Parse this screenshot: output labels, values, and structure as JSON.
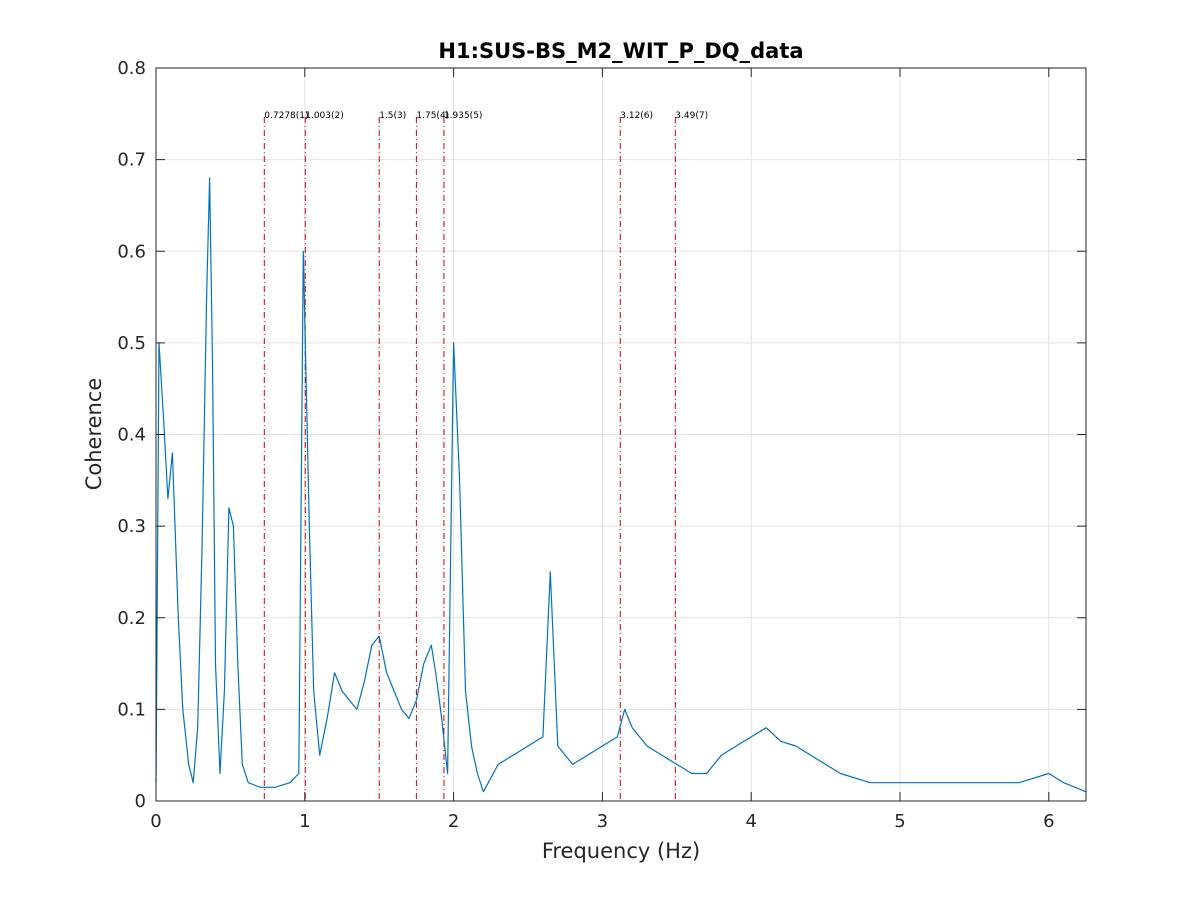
{
  "chart_data": {
    "type": "line",
    "title": "H1:SUS-BS_M2_WIT_P_DQ_data",
    "xlabel": "Frequency (Hz)",
    "ylabel": "Coherence",
    "xlim": [
      0,
      6.25
    ],
    "ylim": [
      0,
      0.8
    ],
    "xticks": [
      0,
      1,
      2,
      3,
      4,
      5,
      6
    ],
    "yticks": [
      0,
      0.1,
      0.2,
      0.3,
      0.4,
      0.5,
      0.6,
      0.7,
      0.8
    ],
    "xtick_labels": [
      "0",
      "1",
      "2",
      "3",
      "4",
      "5",
      "6"
    ],
    "ytick_labels": [
      "0",
      "0.1",
      "0.2",
      "0.3",
      "0.4",
      "0.5",
      "0.6",
      "0.7",
      "0.8"
    ],
    "grid": true,
    "series_color": "#0072bd",
    "marker_color": "#cc0000",
    "series": [
      {
        "x": [
          0.0,
          0.02,
          0.05,
          0.08,
          0.11,
          0.15,
          0.18,
          0.22,
          0.25,
          0.28,
          0.31,
          0.34,
          0.36,
          0.38,
          0.4,
          0.43,
          0.46,
          0.49,
          0.52,
          0.55,
          0.58,
          0.62,
          0.7,
          0.8,
          0.9,
          0.96,
          0.99,
          1.01,
          1.03,
          1.06,
          1.1,
          1.15,
          1.2,
          1.25,
          1.3,
          1.35,
          1.4,
          1.45,
          1.5,
          1.55,
          1.6,
          1.65,
          1.7,
          1.75,
          1.8,
          1.85,
          1.88,
          1.92,
          1.96,
          2.0,
          2.04,
          2.08,
          2.12,
          2.16,
          2.2,
          2.3,
          2.4,
          2.5,
          2.6,
          2.65,
          2.7,
          2.8,
          2.9,
          3.0,
          3.1,
          3.15,
          3.2,
          3.3,
          3.4,
          3.5,
          3.6,
          3.7,
          3.8,
          3.9,
          4.0,
          4.1,
          4.2,
          4.3,
          4.4,
          4.5,
          4.6,
          4.8,
          5.0,
          5.2,
          5.4,
          5.6,
          5.8,
          6.0,
          6.1,
          6.25
        ],
        "y": [
          0.02,
          0.5,
          0.42,
          0.33,
          0.38,
          0.2,
          0.1,
          0.04,
          0.02,
          0.08,
          0.28,
          0.55,
          0.68,
          0.48,
          0.15,
          0.03,
          0.12,
          0.32,
          0.3,
          0.15,
          0.04,
          0.02,
          0.015,
          0.015,
          0.02,
          0.03,
          0.6,
          0.45,
          0.3,
          0.12,
          0.05,
          0.09,
          0.14,
          0.12,
          0.11,
          0.1,
          0.13,
          0.17,
          0.18,
          0.14,
          0.12,
          0.1,
          0.09,
          0.11,
          0.15,
          0.17,
          0.14,
          0.09,
          0.03,
          0.5,
          0.35,
          0.12,
          0.06,
          0.03,
          0.01,
          0.04,
          0.05,
          0.06,
          0.07,
          0.25,
          0.06,
          0.04,
          0.05,
          0.06,
          0.07,
          0.1,
          0.08,
          0.06,
          0.05,
          0.04,
          0.03,
          0.03,
          0.05,
          0.06,
          0.07,
          0.08,
          0.065,
          0.06,
          0.05,
          0.04,
          0.03,
          0.02,
          0.02,
          0.02,
          0.02,
          0.02,
          0.02,
          0.03,
          0.02,
          0.01
        ]
      }
    ],
    "markers": [
      {
        "x": 0.7278,
        "label": "0.7278(1)"
      },
      {
        "x": 1.003,
        "label": "1.003(2)"
      },
      {
        "x": 1.5,
        "label": "1.5(3)"
      },
      {
        "x": 1.75,
        "label": "1.75(4)"
      },
      {
        "x": 1.935,
        "label": "1.935(5)"
      },
      {
        "x": 3.12,
        "label": "3.12(6)"
      },
      {
        "x": 3.49,
        "label": "3.49(7)"
      }
    ]
  }
}
